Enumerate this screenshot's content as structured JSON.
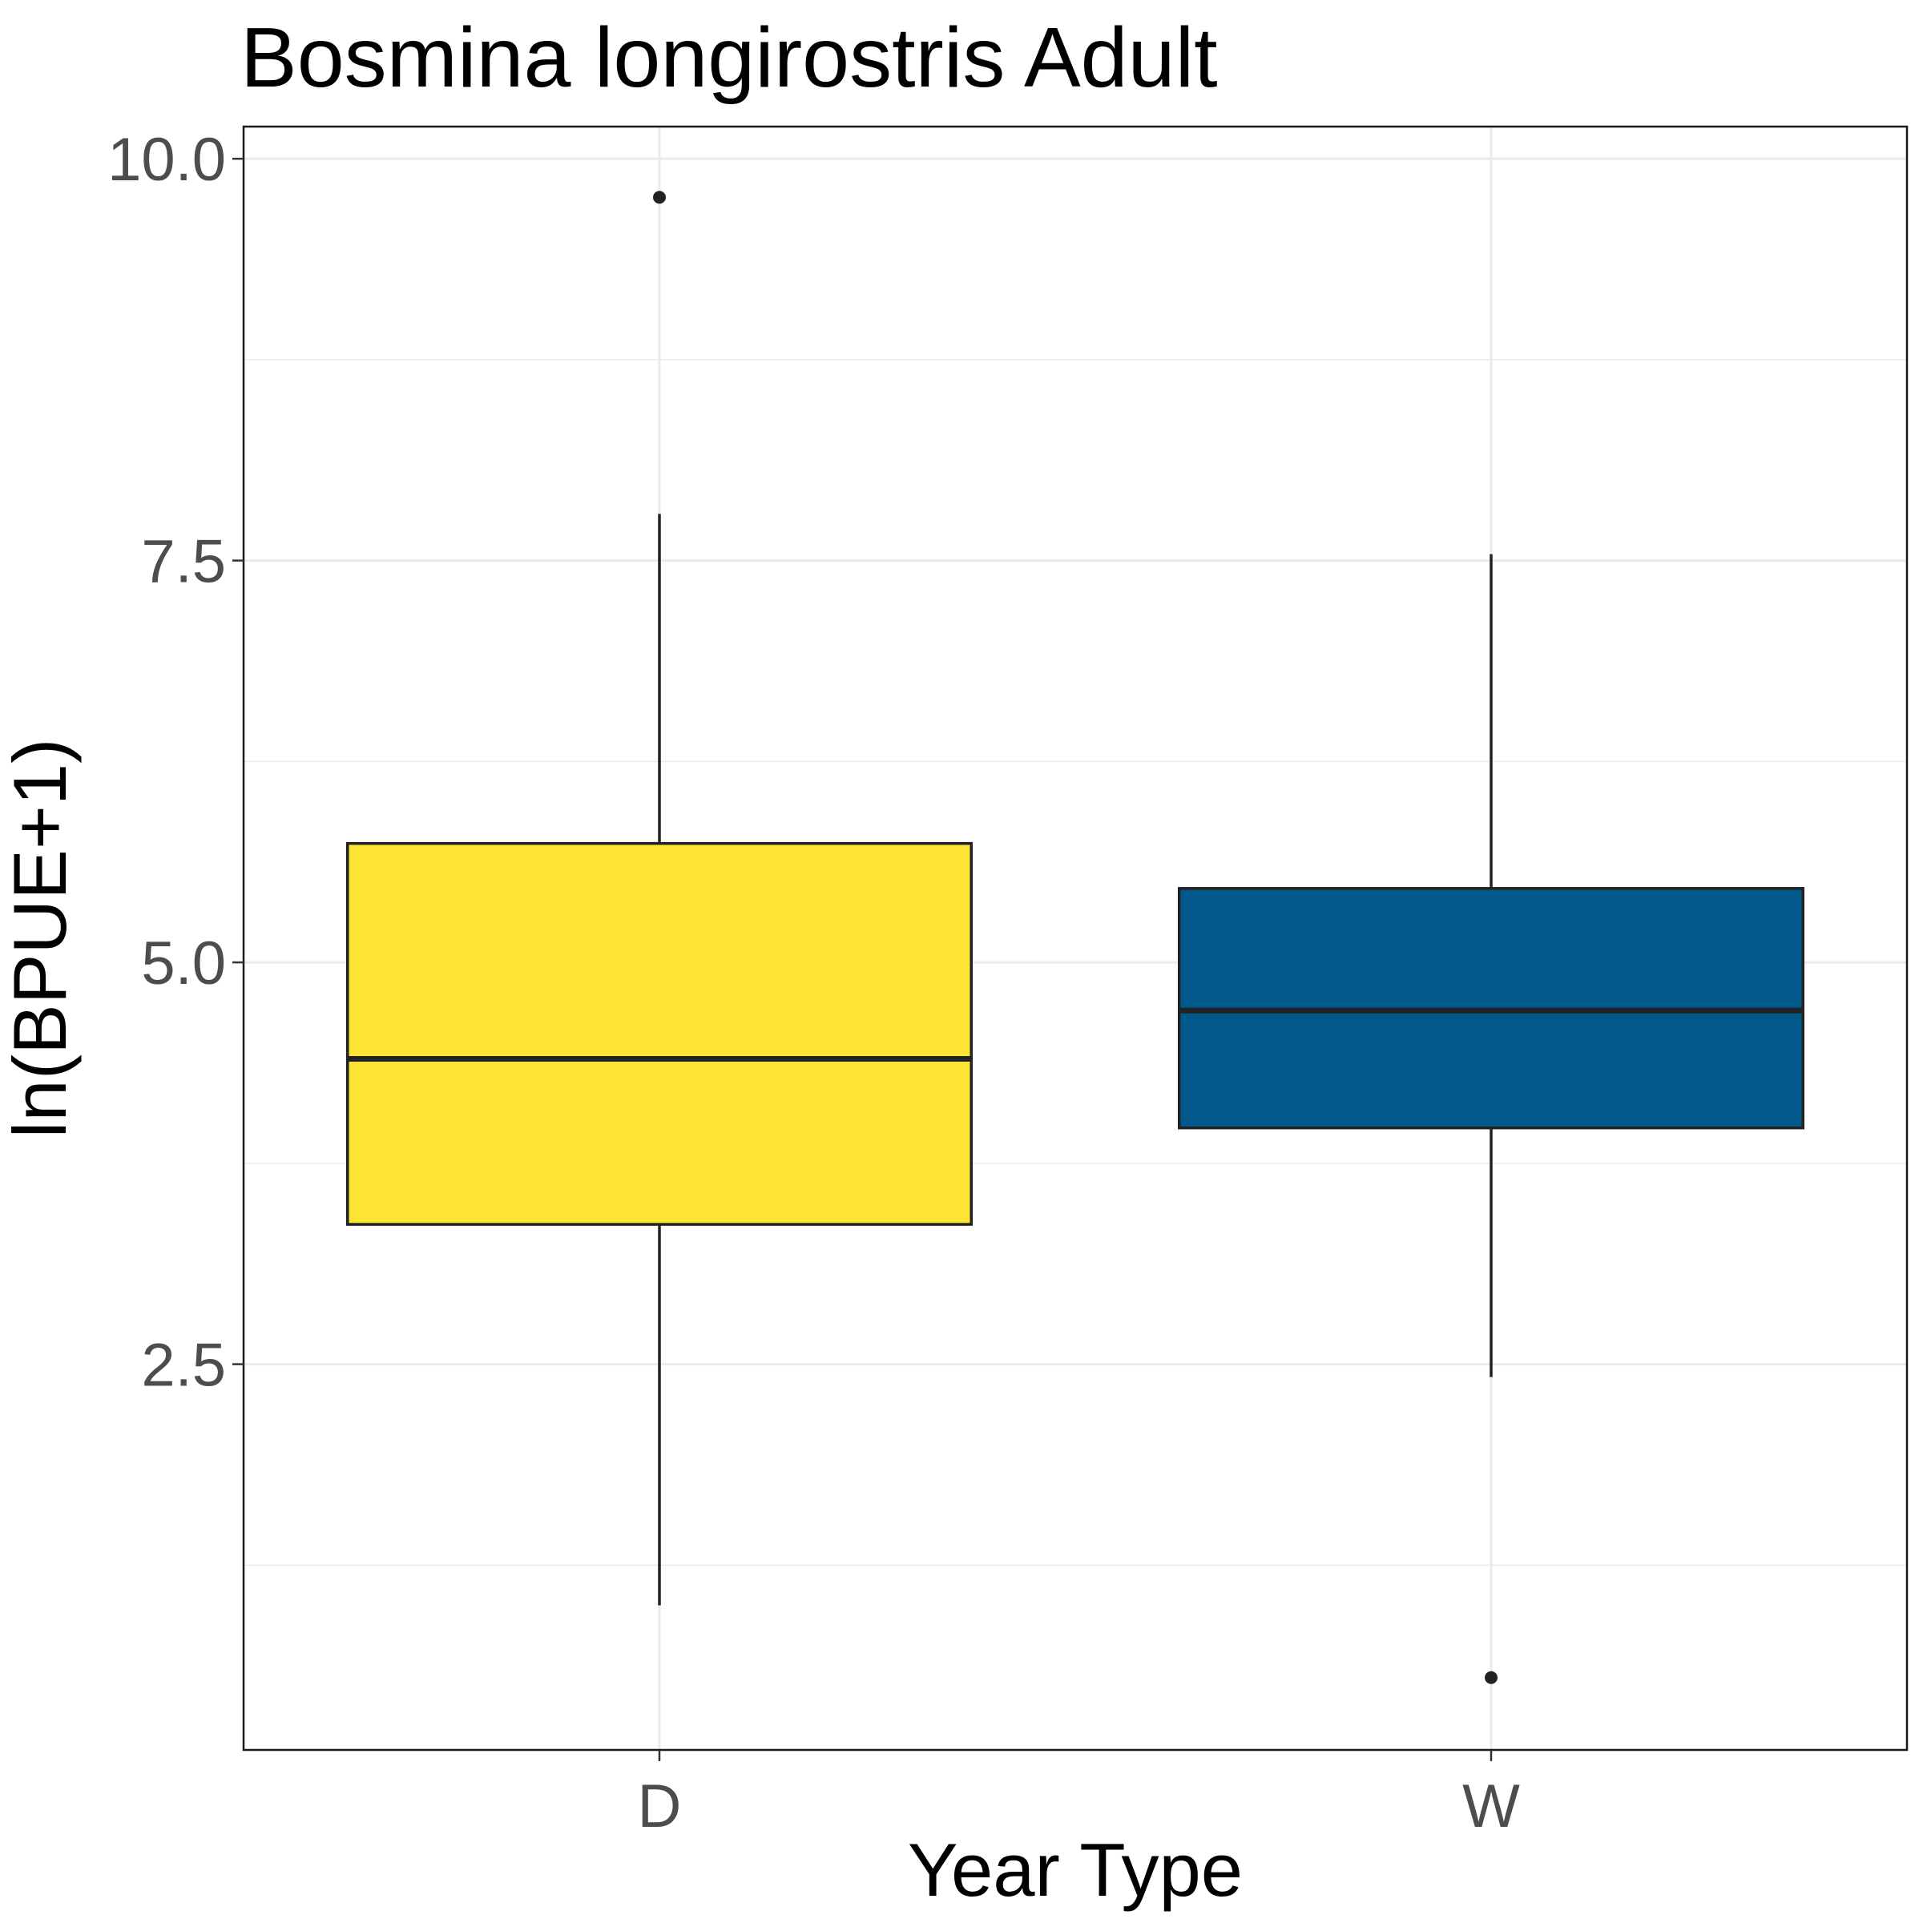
{
  "chart_data": {
    "type": "boxplot",
    "title": "Bosmina longirostris Adult",
    "xlabel": "Year Type",
    "ylabel": "ln(BPUE+1)",
    "categories": [
      "D",
      "W"
    ],
    "ylim": [
      0.1,
      10.2
    ],
    "yticks": [
      2.5,
      5.0,
      7.5,
      10.0
    ],
    "ytick_labels": [
      "2.5",
      "5.0",
      "7.5",
      "10.0"
    ],
    "grid": true,
    "legend": "none",
    "boxes": [
      {
        "category": "D",
        "whisker_low": 1.0,
        "q1": 3.37,
        "median": 4.4,
        "q3": 5.74,
        "whisker_high": 7.79,
        "outliers": [
          9.76
        ],
        "fill": "#fde333"
      },
      {
        "category": "W",
        "whisker_low": 2.42,
        "q1": 3.97,
        "median": 4.7,
        "q3": 5.46,
        "whisker_high": 7.54,
        "outliers": [
          0.55
        ],
        "fill": "#00588b"
      }
    ]
  }
}
